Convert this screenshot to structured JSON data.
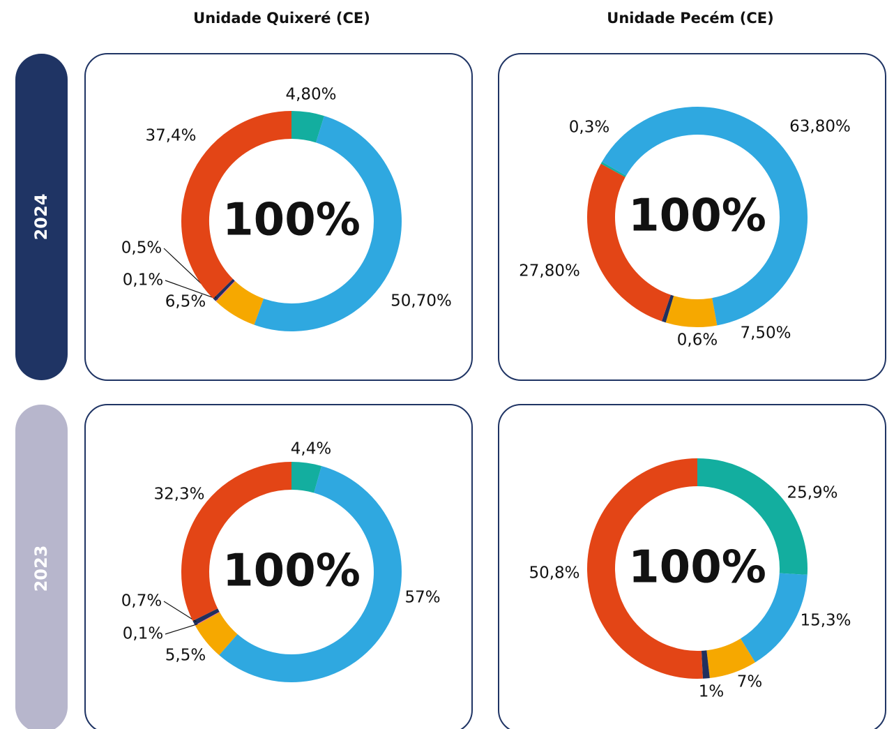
{
  "columns": [
    "Unidade Quixeré (CE)",
    "Unidade Pecém (CE)"
  ],
  "rows": [
    "2024",
    "2023"
  ],
  "chart_data": [
    {
      "type": "donut",
      "center_label": "100%",
      "start_angle": 0,
      "values": [
        4.8,
        50.7,
        6.5,
        0.1,
        0.5,
        37.4
      ],
      "value_labels": [
        "4,80%",
        "50,70%",
        "6,5%",
        "0,1%",
        "0,5%",
        "37,4%"
      ],
      "colors": [
        "#13ae9f",
        "#2fa8e0",
        "#f6a800",
        "#e8559a",
        "#21305e",
        "#e34516"
      ]
    },
    {
      "type": "donut",
      "center_label": "100%",
      "start_angle": -60,
      "values": [
        63.8,
        7.5,
        0.6,
        27.8,
        0.3
      ],
      "value_labels": [
        "63,80%",
        "7,50%",
        "0,6%",
        "27,80%",
        "0,3%"
      ],
      "colors": [
        "#2fa8e0",
        "#f6a800",
        "#21305e",
        "#e34516",
        "#13ae9f"
      ]
    },
    {
      "type": "donut",
      "center_label": "100%",
      "start_angle": 0,
      "values": [
        4.4,
        57,
        5.5,
        0.1,
        0.7,
        32.3
      ],
      "value_labels": [
        "4,4%",
        "57%",
        "5,5%",
        "0,1%",
        "0,7%",
        "32,3%"
      ],
      "colors": [
        "#13ae9f",
        "#2fa8e0",
        "#f6a800",
        "#e8559a",
        "#21305e",
        "#e34516"
      ]
    },
    {
      "type": "donut",
      "center_label": "100%",
      "start_angle": 0,
      "values": [
        25.9,
        15.3,
        7,
        1,
        50.8
      ],
      "value_labels": [
        "25,9%",
        "15,3%",
        "7%",
        "1%",
        "50,8%"
      ],
      "colors": [
        "#13ae9f",
        "#2fa8e0",
        "#f6a800",
        "#21305e",
        "#e34516"
      ]
    }
  ]
}
